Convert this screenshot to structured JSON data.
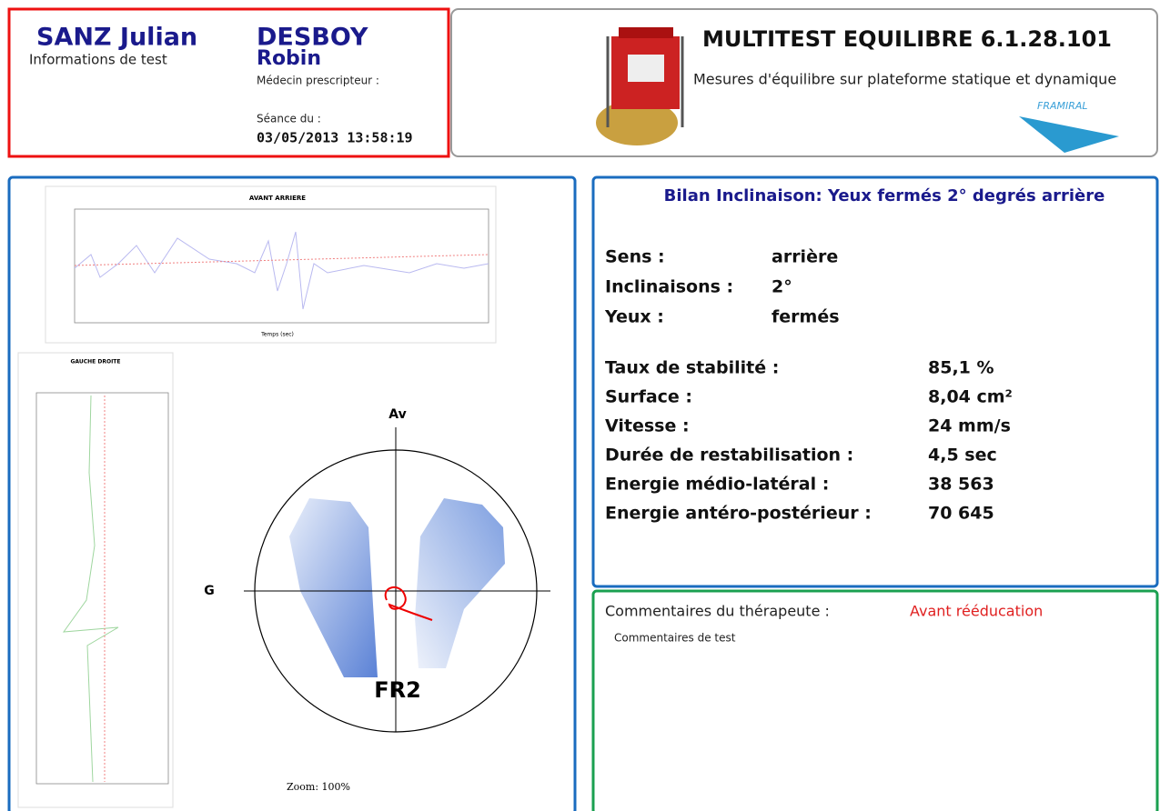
{
  "header": {
    "patient": "SANZ Julian",
    "info": "Informations de test",
    "doctor_last": "DESBOY",
    "doctor_first": "Robin",
    "doctor_label": "Médecin prescripteur :",
    "session_label": "Séance du :",
    "session_date": "03/05/2013 13:58:19",
    "app_title": "MULTITEST EQUILIBRE 6.1.28.101",
    "app_subtitle": "Mesures d'équilibre sur plateforme statique et dynamique",
    "brand": "FRAMIRAL"
  },
  "charts": {
    "ap_title": "AVANT ARRIERE",
    "ap_x_label": "Temps (sec)",
    "ml_title": "GAUCHE DROITE"
  },
  "platform": {
    "front": "Av",
    "left": "G",
    "code": "FR2",
    "zoom": "Zoom: 100%"
  },
  "summary": {
    "title": "Bilan Inclinaison: Yeux fermés 2° degrés arrière",
    "params": [
      [
        "Sens :",
        "arrière"
      ],
      [
        "Inclinaisons :",
        "2°"
      ],
      [
        "Yeux :",
        "fermés"
      ]
    ],
    "stats": [
      [
        "Taux de stabilité :",
        "85,1 %"
      ],
      [
        "Surface :",
        "8,04 cm²"
      ],
      [
        "Vitesse :",
        "24 mm/s"
      ],
      [
        "Durée de restabilisation :",
        "4,5 sec"
      ],
      [
        "Energie médio-latéral :",
        "38 563"
      ],
      [
        "Energie antéro-postérieur :",
        "70 645"
      ]
    ]
  },
  "comments": {
    "label": "Commentaires du thérapeute :",
    "status": "Avant rééducation",
    "text": "Commentaires de test"
  }
}
